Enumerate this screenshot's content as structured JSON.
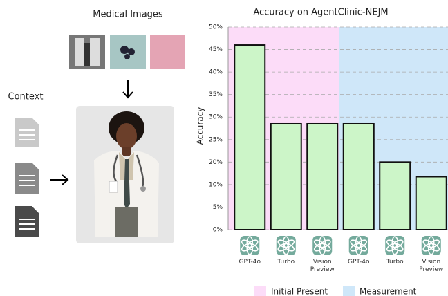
{
  "left": {
    "images_title": "Medical Images",
    "context_title": "Context"
  },
  "chart_data": {
    "type": "bar",
    "title": "Accuracy on AgentClinic-NEJM",
    "ylabel": "Accuracy",
    "ylim": [
      0,
      50
    ],
    "yticks": [
      {
        "value": 0,
        "label": "0%"
      },
      {
        "value": 5,
        "label": "5%"
      },
      {
        "value": 10,
        "label": "10%"
      },
      {
        "value": 20,
        "label": "20%"
      },
      {
        "value": 25,
        "label": "25%"
      },
      {
        "value": 30,
        "label": "30%"
      },
      {
        "value": 35,
        "label": "35%"
      },
      {
        "value": 40,
        "label": "40%"
      },
      {
        "value": 45,
        "label": "45%"
      },
      {
        "value": 50,
        "label": "50%"
      }
    ],
    "grid": true,
    "bar_color": "#ccf5c8",
    "series": [
      {
        "name": "Initial Present",
        "color": "#fcdcf8",
        "categories": [
          "GPT-4o",
          "Turbo",
          "Vision Preview"
        ],
        "values": [
          46,
          28.5,
          28.5
        ]
      },
      {
        "name": "Measurement",
        "color": "#cfe7f9",
        "categories": [
          "GPT-4o",
          "Turbo",
          "Vision Preview"
        ],
        "values": [
          28.5,
          20,
          13.5
        ]
      }
    ]
  }
}
